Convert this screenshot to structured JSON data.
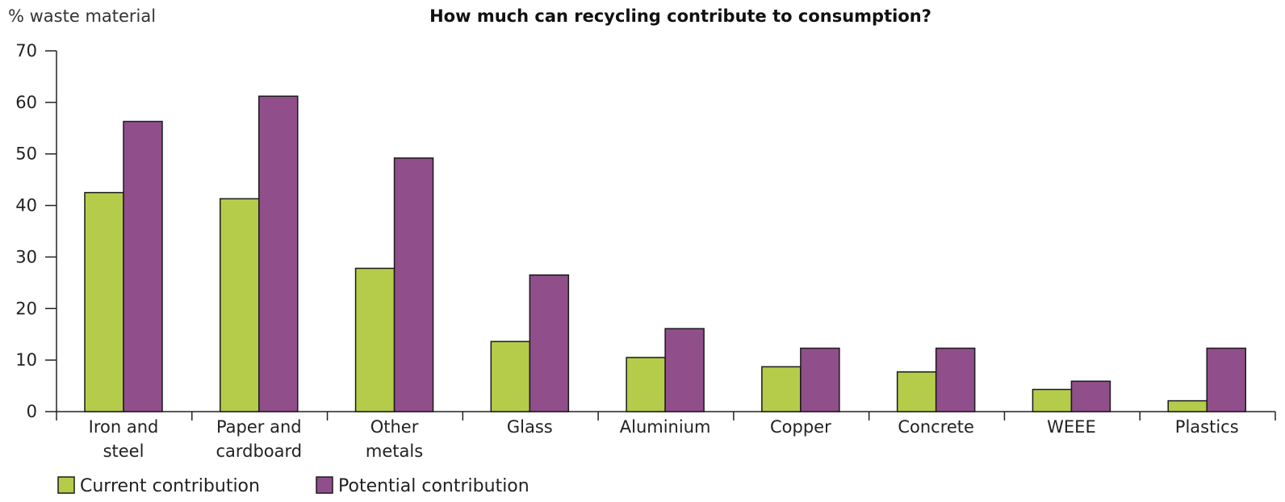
{
  "chart_data": {
    "type": "bar",
    "title": "How much can recycling contribute to consumption?",
    "ylabel": "% waste material",
    "xlabel": "",
    "ylim": [
      0,
      70
    ],
    "yticks": [
      0,
      10,
      20,
      30,
      40,
      50,
      60,
      70
    ],
    "grid": false,
    "legend_position": "bottom-left",
    "categories": [
      [
        "Iron and",
        "steel"
      ],
      [
        "Paper and",
        "cardboard"
      ],
      [
        "Other",
        "metals"
      ],
      [
        "Glass"
      ],
      [
        "Aluminium"
      ],
      [
        "Copper"
      ],
      [
        "Concrete"
      ],
      [
        "WEEE"
      ],
      [
        "Plastics"
      ]
    ],
    "series": [
      {
        "name": "Current contribution",
        "color": "#b5cc4a",
        "values": [
          42.5,
          41.3,
          27.8,
          13.6,
          10.5,
          8.7,
          7.7,
          4.3,
          2.1
        ]
      },
      {
        "name": "Potential contribution",
        "color": "#904e8b",
        "values": [
          56.3,
          61.2,
          49.2,
          26.5,
          16.1,
          12.3,
          12.3,
          5.9,
          12.3
        ]
      }
    ]
  }
}
